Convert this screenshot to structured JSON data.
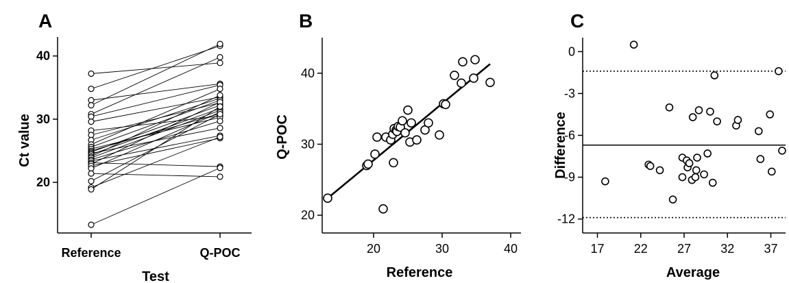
{
  "colors": {
    "line": "#000000",
    "marker_fill": "#ffffff",
    "background": "#ffffff"
  },
  "chart_data": [
    {
      "panel": "A",
      "type": "line",
      "xlabel": "Test",
      "ylabel": "Ct value",
      "categories": [
        "Reference",
        "Q-POC"
      ],
      "yticks": [
        20,
        30,
        40
      ],
      "ylim": [
        12,
        43
      ],
      "grid": false,
      "pairs": [
        [
          37.2,
          38.9
        ],
        [
          34.8,
          41.6
        ],
        [
          33.0,
          35.6
        ],
        [
          32.2,
          41.9
        ],
        [
          30.8,
          39.8
        ],
        [
          30.4,
          35.4
        ],
        [
          29.6,
          33.5
        ],
        [
          28.2,
          30.5
        ],
        [
          27.5,
          32.6
        ],
        [
          26.7,
          33.3
        ],
        [
          26.0,
          34.8
        ],
        [
          25.6,
          33.0
        ],
        [
          25.3,
          30.3
        ],
        [
          25.0,
          30.9
        ],
        [
          24.8,
          32.2
        ],
        [
          24.6,
          28.6
        ],
        [
          24.4,
          31.7
        ],
        [
          24.1,
          33.8
        ],
        [
          23.9,
          31.4
        ],
        [
          23.6,
          29.7
        ],
        [
          23.4,
          27.4
        ],
        [
          23.1,
          22.5
        ],
        [
          22.9,
          32.7
        ],
        [
          22.6,
          27.0
        ],
        [
          22.2,
          31.1
        ],
        [
          21.4,
          20.9
        ],
        [
          20.2,
          30.8
        ],
        [
          19.2,
          27.2
        ],
        [
          18.9,
          32.0
        ],
        [
          13.3,
          22.3
        ]
      ]
    },
    {
      "panel": "B",
      "type": "scatter",
      "xlabel": "Reference",
      "ylabel": "Q-POC",
      "xticks": [
        20,
        30,
        40
      ],
      "yticks": [
        20,
        30,
        40
      ],
      "xlim": [
        12.5,
        41.5
      ],
      "ylim": [
        17.5,
        45
      ],
      "grid": false,
      "points": [
        [
          13.3,
          22.4
        ],
        [
          19.0,
          27.0
        ],
        [
          19.2,
          27.2
        ],
        [
          20.2,
          28.6
        ],
        [
          20.5,
          31.0
        ],
        [
          21.4,
          20.9
        ],
        [
          21.8,
          31.0
        ],
        [
          22.5,
          30.6
        ],
        [
          22.8,
          31.4
        ],
        [
          22.9,
          27.4
        ],
        [
          23.0,
          32.2
        ],
        [
          23.3,
          32.0
        ],
        [
          23.4,
          31.8
        ],
        [
          23.6,
          32.5
        ],
        [
          23.9,
          32.4
        ],
        [
          24.2,
          33.3
        ],
        [
          24.6,
          31.6
        ],
        [
          25.0,
          34.8
        ],
        [
          25.3,
          30.3
        ],
        [
          25.5,
          33.0
        ],
        [
          26.3,
          30.6
        ],
        [
          27.5,
          32.0
        ],
        [
          28.0,
          33.0
        ],
        [
          29.6,
          31.3
        ],
        [
          30.2,
          35.7
        ],
        [
          30.5,
          35.6
        ],
        [
          31.8,
          39.7
        ],
        [
          32.8,
          38.6
        ],
        [
          33.0,
          41.6
        ],
        [
          34.6,
          39.3
        ],
        [
          34.8,
          41.9
        ],
        [
          37.0,
          38.7
        ]
      ],
      "fit_line": [
        [
          13.3,
          22.4
        ],
        [
          37.0,
          41.3
        ]
      ]
    },
    {
      "panel": "C",
      "type": "scatter",
      "xlabel": "Average",
      "ylabel": "Difference",
      "xticks": [
        17,
        22,
        27,
        32,
        37
      ],
      "yticks": [
        0,
        -3,
        -6,
        -9,
        -12
      ],
      "xlim": [
        15.3,
        38.7
      ],
      "ylim": [
        -13.0,
        1.0
      ],
      "grid": false,
      "mean_line": -6.7,
      "limits_of_agreement": [
        -1.4,
        -11.9
      ],
      "points": [
        [
          17.9,
          -9.3
        ],
        [
          21.2,
          0.5
        ],
        [
          22.9,
          -8.1
        ],
        [
          23.1,
          -8.2
        ],
        [
          24.2,
          -8.5
        ],
        [
          25.3,
          -4.0
        ],
        [
          25.7,
          -10.6
        ],
        [
          26.8,
          -7.6
        ],
        [
          26.8,
          -9.0
        ],
        [
          27.3,
          -7.8
        ],
        [
          27.4,
          -8.3
        ],
        [
          27.6,
          -8.0
        ],
        [
          27.9,
          -9.2
        ],
        [
          28.0,
          -4.7
        ],
        [
          28.3,
          -9.0
        ],
        [
          28.4,
          -8.5
        ],
        [
          28.5,
          -7.6
        ],
        [
          28.7,
          -4.2
        ],
        [
          29.3,
          -8.8
        ],
        [
          29.7,
          -7.3
        ],
        [
          30.0,
          -4.3
        ],
        [
          30.3,
          -9.4
        ],
        [
          30.5,
          -1.7
        ],
        [
          30.8,
          -5.0
        ],
        [
          33.0,
          -5.3
        ],
        [
          33.2,
          -4.9
        ],
        [
          35.6,
          -5.7
        ],
        [
          35.8,
          -7.7
        ],
        [
          36.9,
          -4.5
        ],
        [
          37.1,
          -8.6
        ],
        [
          37.9,
          -1.4
        ],
        [
          38.3,
          -7.1
        ]
      ]
    }
  ]
}
